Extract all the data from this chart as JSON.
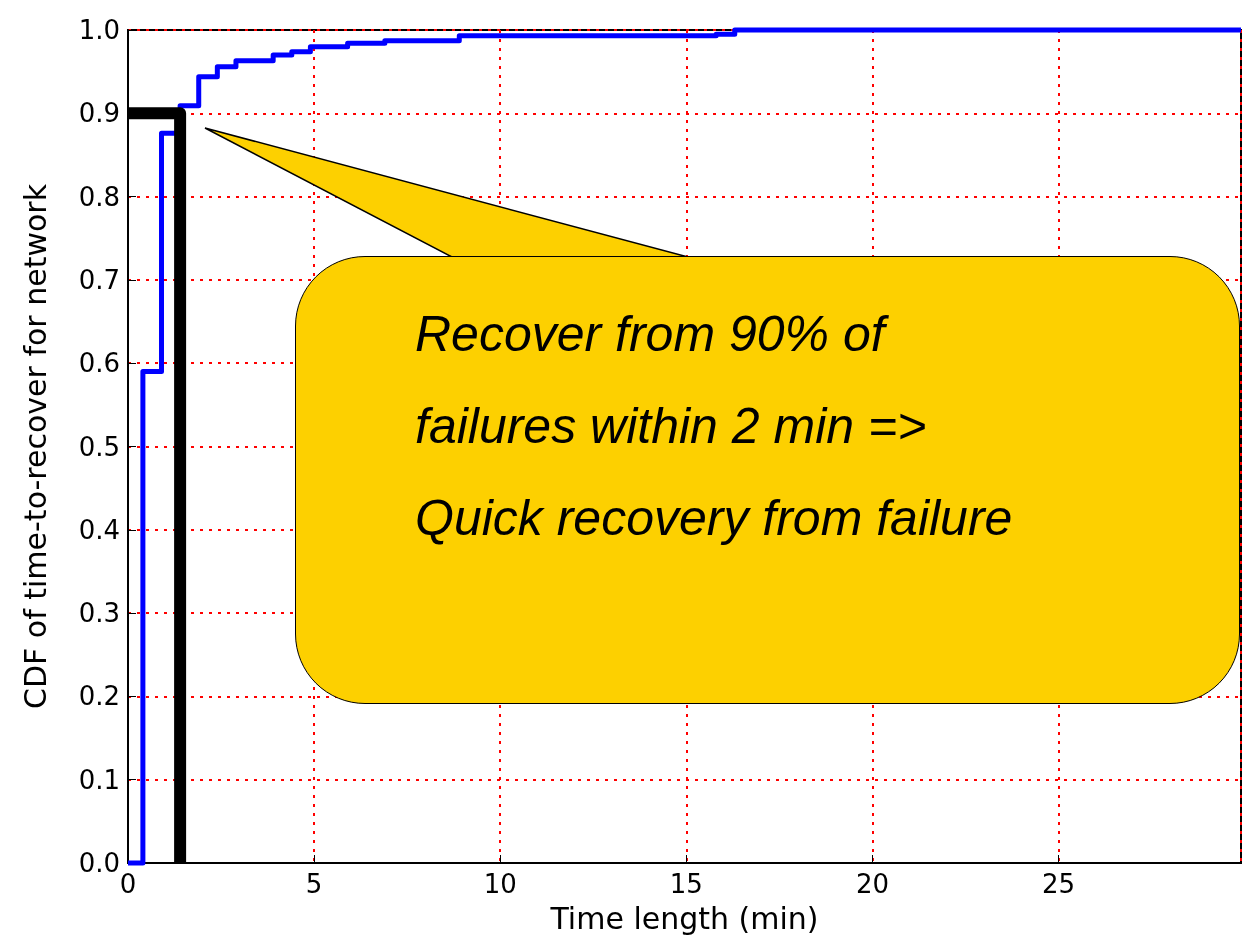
{
  "chart_data": {
    "type": "step",
    "xlabel": "Time length (min)",
    "ylabel": "CDF of time-to-recover for network",
    "series": [
      {
        "color": "#0000ff",
        "x": [
          0,
          0.4,
          0.9,
          1.4,
          1.9,
          2.4,
          2.9,
          3.9,
          4.4,
          4.9,
          5.9,
          6.9,
          8.9,
          15.8,
          16.3,
          29.9
        ],
        "values": [
          0,
          0.59,
          0.876,
          0.909,
          0.944,
          0.956,
          0.963,
          0.97,
          0.974,
          0.98,
          0.984,
          0.987,
          0.993,
          0.995,
          1.0,
          1.0
        ]
      },
      {
        "type": "line",
        "color": "#000000",
        "x": [
          0,
          1.4,
          1.4
        ],
        "values": [
          0.9,
          0.9,
          0
        ]
      }
    ],
    "xlim": [
      0,
      29.9
    ],
    "xticks": [
      0,
      5,
      10,
      15,
      20,
      25
    ],
    "ylim": [
      0,
      1
    ],
    "yticks": [
      {
        "value": 0,
        "label": "0.0"
      },
      {
        "value": 0.1,
        "label": "0.1"
      },
      {
        "value": 0.2,
        "label": "0.2"
      },
      {
        "value": 0.3,
        "label": "0.3"
      },
      {
        "value": 0.4,
        "label": "0.4"
      },
      {
        "value": 0.5,
        "label": "0.5"
      },
      {
        "value": 0.6,
        "label": "0.6"
      },
      {
        "value": 0.7,
        "label": "0.7"
      },
      {
        "value": 0.8,
        "label": "0.8"
      },
      {
        "value": 0.9,
        "label": "0.9"
      },
      {
        "value": 1,
        "label": "1.0"
      }
    ],
    "grid": true,
    "annotations": [
      "Recover from 90% of failures within 2 min => Quick recovery from failure"
    ]
  }
}
